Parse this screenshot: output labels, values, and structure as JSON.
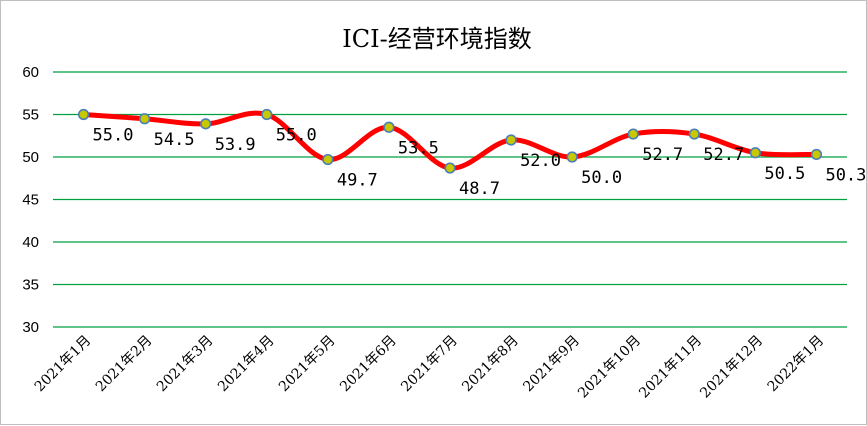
{
  "chart_data": {
    "type": "line",
    "title": "ICI-经营环境指数",
    "categories": [
      "2021年1月",
      "2021年2月",
      "2021年3月",
      "2021年4月",
      "2021年5月",
      "2021年6月",
      "2021年7月",
      "2021年8月",
      "2021年9月",
      "2021年10月",
      "2021年11月",
      "2021年12月",
      "2022年1月"
    ],
    "series": [
      {
        "values": [
          55.0,
          54.5,
          53.9,
          55.0,
          49.7,
          53.5,
          48.7,
          52.0,
          50.0,
          52.7,
          52.7,
          50.5,
          50.3
        ]
      }
    ],
    "data_labels": [
      "55.0",
      "54.5",
      "53.9",
      "55.0",
      "49.7",
      "53.5",
      "48.7",
      "52.0",
      "50.0",
      "52.7",
      "52.7",
      "50.5",
      "50.3"
    ],
    "ylim": [
      30,
      60
    ],
    "yticks": [
      "30",
      "35",
      "40",
      "45",
      "50",
      "55",
      "60"
    ],
    "grid": true,
    "legend": "none",
    "line_color": "#ff0000",
    "marker_fill": "#c8c800",
    "marker_edge": "#4a7fb5",
    "grid_color": "#00a040"
  }
}
